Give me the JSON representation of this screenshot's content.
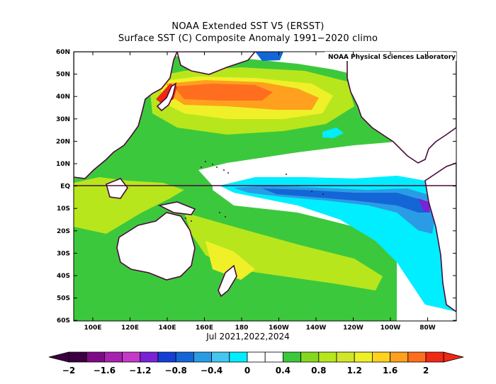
{
  "title": "NOAA Extended SST V5 (ERSST)",
  "subtitle": "Surface SST (C) Composite Anomaly 1991−2020 climo",
  "credit": "NOAA Physical Sciences Laboratory",
  "x_axis_note": "Jul 2021,2022,2024",
  "lat_labels": [
    "60N",
    "50N",
    "40N",
    "30N",
    "20N",
    "10N",
    "EQ",
    "10S",
    "20S",
    "30S",
    "40S",
    "50S",
    "60S"
  ],
  "lon_labels": [
    "100E",
    "120E",
    "140E",
    "160E",
    "180",
    "160W",
    "140W",
    "120W",
    "100W",
    "80W"
  ],
  "colorbar": {
    "tick_labels": [
      "−2",
      "−1.6",
      "−1.2",
      "−0.8",
      "−0.4",
      "0",
      "0.4",
      "0.8",
      "1.2",
      "1.6",
      "2"
    ],
    "colors": [
      "#3a0040",
      "#7e0a86",
      "#a822b0",
      "#c43ac8",
      "#7a22d6",
      "#1240d6",
      "#1466d6",
      "#2a9ce6",
      "#44c6f0",
      "#00eeff",
      "#ffffff",
      "#ffffff",
      "#3cc83c",
      "#86d81e",
      "#b8e61c",
      "#d2e628",
      "#f0f028",
      "#ffd21e",
      "#ffa01e",
      "#ff6e1e",
      "#f02814"
    ],
    "unit": "C"
  }
}
